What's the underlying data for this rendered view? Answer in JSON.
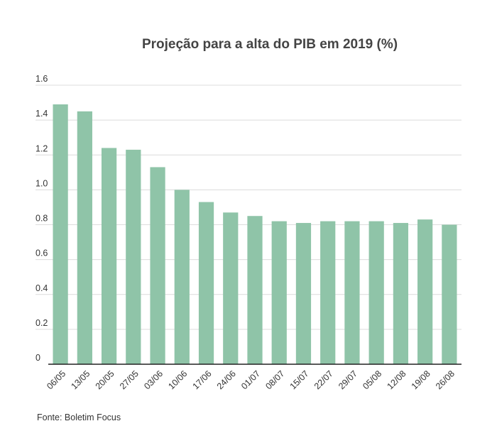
{
  "chart_data": {
    "type": "bar",
    "title": "Projeção para a alta do PIB em 2019 (%)",
    "categories": [
      "06/05",
      "13/05",
      "20/05",
      "27/05",
      "03/06",
      "10/06",
      "17/06",
      "24/06",
      "01/07",
      "08/07",
      "15/07",
      "22/07",
      "29/07",
      "05/08",
      "12/08",
      "19/08",
      "26/08"
    ],
    "values": [
      1.49,
      1.45,
      1.24,
      1.23,
      1.13,
      1.0,
      0.93,
      0.87,
      0.85,
      0.82,
      0.81,
      0.82,
      0.82,
      0.82,
      0.81,
      0.83,
      0.8
    ],
    "ylim": [
      0,
      1.6
    ],
    "yticks": [
      "0",
      "0.2",
      "0.4",
      "0.6",
      "0.8",
      "1.0",
      "1.2",
      "1.4",
      "1.6"
    ],
    "bar_color": "#8fc4a8",
    "grid": true
  },
  "source": "Fonte: Boletim Focus"
}
